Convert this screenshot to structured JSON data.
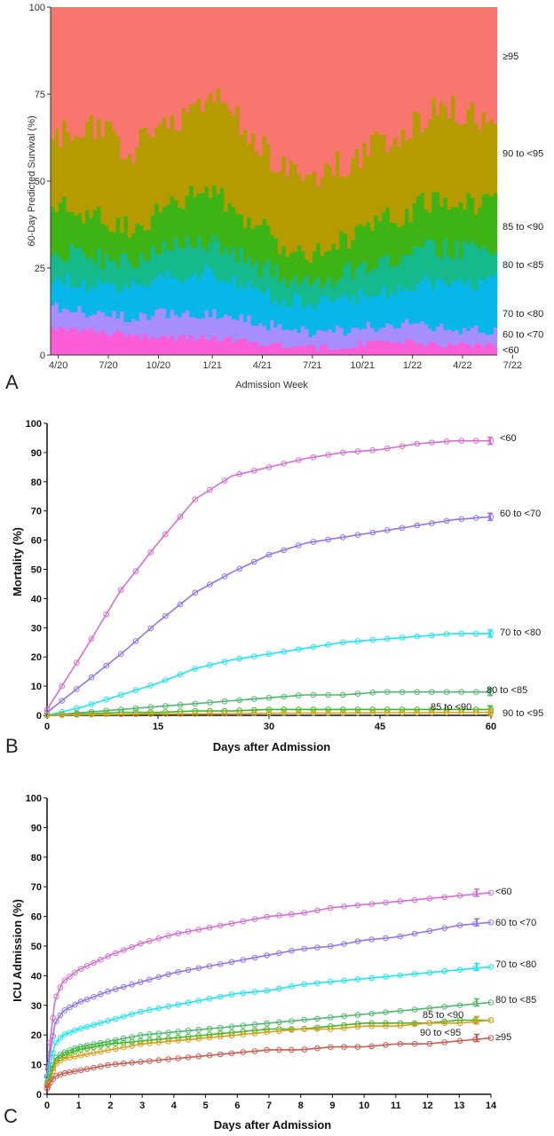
{
  "panels": [
    {
      "letter": "A"
    },
    {
      "letter": "B"
    },
    {
      "letter": "C"
    }
  ],
  "colors": {
    "ge95": "#f8766d",
    "90to95": "#b59a00",
    "85to90": "#3db414",
    "80to85": "#16b98c",
    "70to80": "#08b7e9",
    "60to70": "#a68efc",
    "lt60": "#fb5cd8",
    "lineLt60": "#d46fd0",
    "line60to70": "#9375e6",
    "line70to80": "#1fe6ee",
    "line80to85": "#52b870",
    "line85to90": "#3dbb2a",
    "line90to95": "#d6a020",
    "linege95": "#c95c52"
  },
  "chart_data": [
    {
      "type": "area",
      "xlabel": "Admission Week",
      "ylabel": "60-Day Predicted Survival (%)",
      "ylim": [
        0,
        100
      ],
      "yticks": [
        "0",
        "25",
        "50",
        "75",
        "100"
      ],
      "xticks": [
        "4/20",
        "7/20",
        "10/20",
        "1/21",
        "4/21",
        "7/21",
        "10/21",
        "1/22",
        "4/22",
        "7/22"
      ],
      "xtick_weeks": [
        2,
        15,
        28,
        42,
        55,
        68,
        81,
        94,
        107,
        120
      ],
      "n_weeks": 116,
      "stack_order": [
        "<60",
        "60 to <70",
        "70 to <80",
        "80 to <85",
        "85 to <90",
        "90 to <95",
        "≥95"
      ],
      "legend_labels": [
        {
          "label": "≥95",
          "y": 86
        },
        {
          "label": "90 to <95",
          "y": 58
        },
        {
          "label": "85 to <90",
          "y": 37
        },
        {
          "label": "80 to <85",
          "y": 26
        },
        {
          "label": "70 to <80",
          "y": 12
        },
        {
          "label": "60 to <70",
          "y": 6
        },
        {
          "label": "<60",
          "y": 1.5
        }
      ],
      "cumulative_keypoints": [
        {
          "name": "<60",
          "points": [
            [
              0,
              8
            ],
            [
              10,
              7
            ],
            [
              20,
              6
            ],
            [
              30,
              5
            ],
            [
              40,
              5
            ],
            [
              50,
              4
            ],
            [
              60,
              3
            ],
            [
              70,
              2
            ],
            [
              80,
              3
            ],
            [
              90,
              4
            ],
            [
              100,
              3
            ],
            [
              110,
              3
            ],
            [
              115,
              3
            ]
          ]
        },
        {
          "name": "60 to <70",
          "points": [
            [
              0,
              14
            ],
            [
              10,
              12
            ],
            [
              20,
              11
            ],
            [
              30,
              12
            ],
            [
              40,
              12
            ],
            [
              50,
              10
            ],
            [
              60,
              8
            ],
            [
              70,
              6
            ],
            [
              80,
              8
            ],
            [
              90,
              9
            ],
            [
              100,
              8
            ],
            [
              110,
              7
            ],
            [
              115,
              7
            ]
          ]
        },
        {
          "name": "70 to <80",
          "points": [
            [
              0,
              22
            ],
            [
              10,
              20
            ],
            [
              20,
              20
            ],
            [
              30,
              22
            ],
            [
              40,
              24
            ],
            [
              50,
              20
            ],
            [
              60,
              16
            ],
            [
              70,
              15
            ],
            [
              80,
              17
            ],
            [
              90,
              19
            ],
            [
              100,
              21
            ],
            [
              110,
              20
            ],
            [
              115,
              21
            ]
          ]
        },
        {
          "name": "80 to <85",
          "points": [
            [
              0,
              30
            ],
            [
              10,
              28
            ],
            [
              20,
              27
            ],
            [
              30,
              30
            ],
            [
              40,
              33
            ],
            [
              50,
              28
            ],
            [
              60,
              22
            ],
            [
              70,
              21
            ],
            [
              80,
              25
            ],
            [
              90,
              28
            ],
            [
              100,
              31
            ],
            [
              110,
              30
            ],
            [
              115,
              30
            ]
          ]
        },
        {
          "name": "85 to <90",
          "points": [
            [
              0,
              43
            ],
            [
              10,
              40
            ],
            [
              20,
              37
            ],
            [
              30,
              42
            ],
            [
              40,
              48
            ],
            [
              50,
              40
            ],
            [
              60,
              31
            ],
            [
              70,
              30
            ],
            [
              80,
              36
            ],
            [
              90,
              40
            ],
            [
              100,
              45
            ],
            [
              110,
              44
            ],
            [
              115,
              44
            ]
          ]
        },
        {
          "name": "90 to <95",
          "points": [
            [
              0,
              62
            ],
            [
              10,
              66
            ],
            [
              20,
              59
            ],
            [
              30,
              66
            ],
            [
              40,
              75
            ],
            [
              50,
              66
            ],
            [
              60,
              53
            ],
            [
              70,
              52
            ],
            [
              80,
              58
            ],
            [
              90,
              63
            ],
            [
              100,
              72
            ],
            [
              110,
              68
            ],
            [
              115,
              67
            ]
          ]
        }
      ]
    },
    {
      "type": "line",
      "xlabel": "Days after Admission",
      "ylabel": "Mortality (%)",
      "xlim": [
        0,
        60
      ],
      "ylim": [
        0,
        100
      ],
      "xticks": [
        "0",
        "15",
        "30",
        "45",
        "60"
      ],
      "yticks": [
        "0",
        "10",
        "20",
        "30",
        "40",
        "50",
        "60",
        "70",
        "80",
        "90",
        "100"
      ],
      "series": [
        {
          "name": "<60",
          "x": [
            0,
            5,
            10,
            15,
            20,
            25,
            30,
            35,
            40,
            45,
            50,
            55,
            60
          ],
          "values": [
            2,
            22,
            43,
            59,
            74,
            82,
            85,
            88,
            90,
            91,
            93,
            94,
            94
          ]
        },
        {
          "name": "60 to <70",
          "x": [
            0,
            5,
            10,
            15,
            20,
            25,
            30,
            35,
            40,
            45,
            50,
            55,
            60
          ],
          "values": [
            1,
            11,
            21,
            32,
            42,
            49,
            55,
            59,
            61,
            63,
            65,
            67,
            68
          ]
        },
        {
          "name": "70 to <80",
          "x": [
            0,
            5,
            10,
            15,
            20,
            25,
            30,
            35,
            40,
            45,
            50,
            55,
            60
          ],
          "values": [
            0,
            3,
            7,
            11,
            16,
            19,
            21,
            23,
            25,
            26,
            27,
            28,
            28
          ]
        },
        {
          "name": "80 to <85",
          "x": [
            0,
            5,
            10,
            15,
            20,
            25,
            30,
            35,
            40,
            45,
            50,
            55,
            60
          ],
          "values": [
            0,
            1,
            2,
            3,
            4,
            5,
            6,
            7,
            7,
            8,
            8,
            8,
            8
          ]
        },
        {
          "name": "85 to <90",
          "x": [
            0,
            5,
            10,
            15,
            20,
            25,
            30,
            35,
            40,
            45,
            50,
            55,
            60
          ],
          "values": [
            0,
            0.5,
            1,
            1,
            1.5,
            1.5,
            2,
            2,
            2,
            2,
            2,
            2,
            2
          ]
        },
        {
          "name": "90 to <95",
          "x": [
            0,
            5,
            10,
            15,
            20,
            25,
            30,
            35,
            40,
            45,
            50,
            55,
            60
          ],
          "values": [
            0,
            0.2,
            0.3,
            0.5,
            0.5,
            0.6,
            0.7,
            0.8,
            0.8,
            0.9,
            0.9,
            1,
            1
          ]
        }
      ]
    },
    {
      "type": "line",
      "xlabel": "Days after Admission",
      "ylabel": "ICU Admission (%)",
      "xlim": [
        0,
        14
      ],
      "ylim": [
        0,
        100
      ],
      "xticks": [
        "0",
        "1",
        "2",
        "3",
        "4",
        "5",
        "6",
        "7",
        "8",
        "9",
        "10",
        "11",
        "12",
        "13",
        "14"
      ],
      "yticks": [
        "0",
        "10",
        "20",
        "30",
        "40",
        "50",
        "60",
        "70",
        "80",
        "90",
        "100"
      ],
      "series": [
        {
          "name": "<60",
          "x": [
            0,
            0.1,
            0.25,
            0.5,
            1,
            2,
            3,
            4,
            5,
            6,
            7,
            8,
            9,
            10,
            11,
            12,
            13,
            14
          ],
          "values": [
            6,
            18,
            32,
            38,
            42,
            47,
            51,
            54,
            56,
            58,
            60,
            61,
            63,
            64,
            65,
            66,
            67,
            68
          ]
        },
        {
          "name": "60 to <70",
          "x": [
            0,
            0.1,
            0.25,
            0.5,
            1,
            2,
            3,
            4,
            5,
            6,
            7,
            8,
            9,
            10,
            11,
            12,
            13,
            14
          ],
          "values": [
            6,
            14,
            24,
            28,
            31,
            35,
            38,
            41,
            43,
            45,
            47,
            49,
            50,
            52,
            53,
            55,
            57,
            58
          ]
        },
        {
          "name": "70 to <80",
          "x": [
            0,
            0.1,
            0.25,
            0.5,
            1,
            2,
            3,
            4,
            5,
            6,
            7,
            8,
            9,
            10,
            11,
            12,
            13,
            14
          ],
          "values": [
            4,
            10,
            17,
            20,
            22,
            25,
            28,
            30,
            32,
            34,
            35,
            37,
            38,
            39,
            40,
            41,
            42,
            43
          ]
        },
        {
          "name": "80 to <85",
          "x": [
            0,
            0.1,
            0.25,
            0.5,
            1,
            2,
            3,
            4,
            5,
            6,
            7,
            8,
            9,
            10,
            11,
            12,
            13,
            14
          ],
          "values": [
            3,
            7,
            12,
            14,
            16,
            18,
            20,
            21,
            22,
            23,
            24,
            25,
            26,
            27,
            28,
            29,
            30,
            31
          ]
        },
        {
          "name": "85 to <90",
          "x": [
            0,
            0.1,
            0.25,
            0.5,
            1,
            2,
            3,
            4,
            5,
            6,
            7,
            8,
            9,
            10,
            11,
            12,
            13,
            14
          ],
          "values": [
            3,
            6,
            11,
            13,
            15,
            17,
            18,
            19,
            20,
            21,
            22,
            22,
            23,
            24,
            24,
            24,
            25,
            25
          ]
        },
        {
          "name": "90 to <95",
          "x": [
            0,
            0.1,
            0.25,
            0.5,
            1,
            2,
            3,
            4,
            5,
            6,
            7,
            8,
            9,
            10,
            11,
            12,
            13,
            14
          ],
          "values": [
            3,
            5,
            10,
            12,
            13,
            15,
            17,
            18,
            19,
            20,
            21,
            22,
            22,
            23,
            23,
            24,
            24,
            25
          ]
        },
        {
          "name": "≥95",
          "x": [
            0,
            0.1,
            0.25,
            0.5,
            1,
            2,
            3,
            4,
            5,
            6,
            7,
            8,
            9,
            10,
            11,
            12,
            13,
            14
          ],
          "values": [
            2,
            4,
            6,
            7,
            8,
            10,
            11,
            12,
            13,
            14,
            15,
            15,
            16,
            16,
            17,
            17,
            18,
            19
          ]
        }
      ]
    }
  ]
}
